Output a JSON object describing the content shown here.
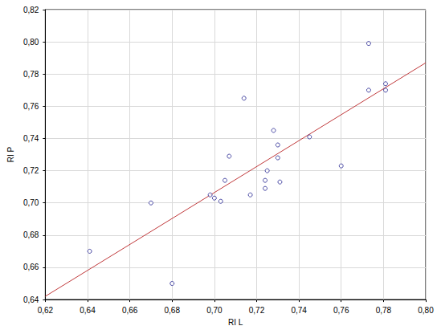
{
  "chart_data": {
    "type": "scatter",
    "x_label": "RI L",
    "y_label": "RI P",
    "x": [
      0.641,
      0.67,
      0.68,
      0.698,
      0.7,
      0.705,
      0.703,
      0.707,
      0.714,
      0.717,
      0.724,
      0.724,
      0.725,
      0.728,
      0.73,
      0.73,
      0.731,
      0.745,
      0.76,
      0.773,
      0.773,
      0.781,
      0.781
    ],
    "values": [
      0.67,
      0.7,
      0.65,
      0.705,
      0.703,
      0.714,
      0.701,
      0.729,
      0.765,
      0.705,
      0.714,
      0.709,
      0.72,
      0.745,
      0.736,
      0.728,
      0.713,
      0.741,
      0.723,
      0.799,
      0.77,
      0.774,
      0.77
    ],
    "color": "#1f1f8f",
    "marker": "circle_open",
    "fit_line": {
      "x": [
        0.62,
        0.8
      ],
      "y": [
        0.642,
        0.787
      ],
      "color": "#c0393b",
      "line_style": "solid"
    },
    "xlim": [
      0.62,
      0.8
    ],
    "xticks": [
      {
        "value": 0.62,
        "label": "0,62"
      },
      {
        "value": 0.64,
        "label": "0,64"
      },
      {
        "value": 0.66,
        "label": "0,66"
      },
      {
        "value": 0.68,
        "label": "0,68"
      },
      {
        "value": 0.7,
        "label": "0,70"
      },
      {
        "value": 0.72,
        "label": "0,72"
      },
      {
        "value": 0.74,
        "label": "0,74"
      },
      {
        "value": 0.76,
        "label": "0,76"
      },
      {
        "value": 0.78,
        "label": "0,78"
      },
      {
        "value": 0.8,
        "label": "0,80"
      }
    ],
    "ylim": [
      0.64,
      0.82
    ],
    "yticks": [
      {
        "value": 0.64,
        "label": "0,64"
      },
      {
        "value": 0.66,
        "label": "0,66"
      },
      {
        "value": 0.68,
        "label": "0,68"
      },
      {
        "value": 0.7,
        "label": "0,70"
      },
      {
        "value": 0.72,
        "label": "0,72"
      },
      {
        "value": 0.74,
        "label": "0,74"
      },
      {
        "value": 0.76,
        "label": "0,76"
      },
      {
        "value": 0.78,
        "label": "0,78"
      },
      {
        "value": 0.8,
        "label": "0,80"
      },
      {
        "value": 0.82,
        "label": "0,82"
      }
    ],
    "grid": true
  }
}
